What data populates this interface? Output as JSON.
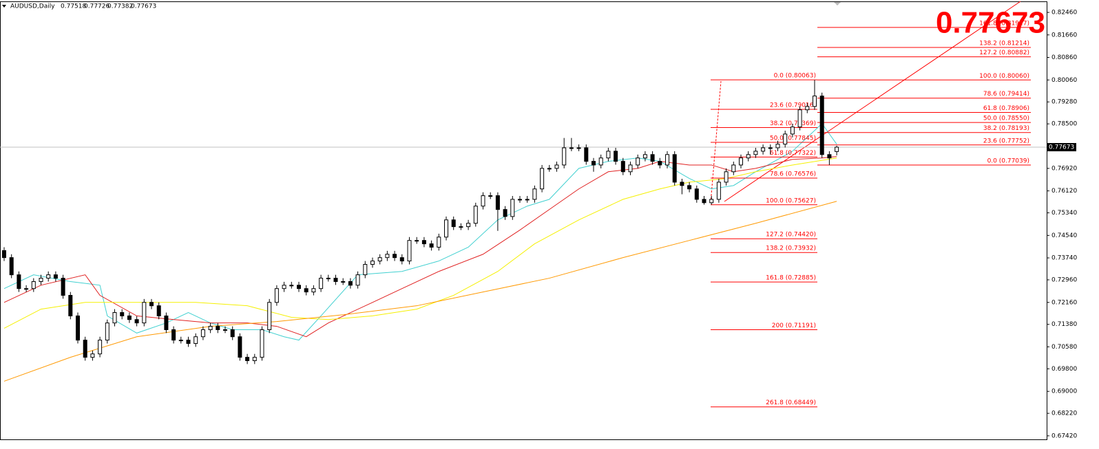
{
  "chart_data": {
    "type": "candlestick",
    "symbol": "AUDUSD,Daily",
    "ylim": [
      0.6727,
      0.829
    ],
    "yticks": [
      {
        "value": 0.8246,
        "label": "0.82460"
      },
      {
        "value": 0.8166,
        "label": "0.81660"
      },
      {
        "value": 0.8086,
        "label": "0.80860"
      },
      {
        "value": 0.8006,
        "label": "0.80060"
      },
      {
        "value": 0.7928,
        "label": "0.79280"
      },
      {
        "value": 0.785,
        "label": "0.78500"
      },
      {
        "value": 0.7692,
        "label": "0.76920"
      },
      {
        "value": 0.7612,
        "label": "0.76120"
      },
      {
        "value": 0.7534,
        "label": "0.75340"
      },
      {
        "value": 0.7454,
        "label": "0.74540"
      },
      {
        "value": 0.7374,
        "label": "0.73740"
      },
      {
        "value": 0.7296,
        "label": "0.72960"
      },
      {
        "value": 0.7216,
        "label": "0.72160"
      },
      {
        "value": 0.7138,
        "label": "0.71380"
      },
      {
        "value": 0.7058,
        "label": "0.70580"
      },
      {
        "value": 0.698,
        "label": "0.69800"
      },
      {
        "value": 0.69,
        "label": "0.69000"
      },
      {
        "value": 0.6822,
        "label": "0.68220"
      },
      {
        "value": 0.6742,
        "label": "0.67420"
      }
    ],
    "open": [
      0.74,
      0.7375,
      0.7314,
      0.7265,
      0.7265,
      0.729,
      0.7302,
      0.7314,
      0.7302,
      0.7241,
      0.7168,
      0.7082,
      0.7021,
      0.7033,
      0.7082,
      0.7143,
      0.718,
      0.7168,
      0.7155,
      0.7143,
      0.7216,
      0.7204,
      0.7168,
      0.7119,
      0.7082,
      0.7082,
      0.707,
      0.7094,
      0.7119,
      0.7131,
      0.7119,
      0.7119,
      0.7094,
      0.7021,
      0.7009,
      0.7021,
      0.7119,
      0.7216,
      0.7265,
      0.7277,
      0.7277,
      0.7265,
      0.7253,
      0.7265,
      0.7302,
      0.7302,
      0.729,
      0.729,
      0.7277,
      0.7314,
      0.7351,
      0.7363,
      0.7375,
      0.7387,
      0.7375,
      0.7363,
      0.7436,
      0.7436,
      0.7424,
      0.7412,
      0.7448,
      0.7509,
      0.7485,
      0.7485,
      0.7497,
      0.7558,
      0.7595,
      0.7595,
      0.7546,
      0.7521,
      0.7582,
      0.7582,
      0.7582,
      0.7619,
      0.7692,
      0.7692,
      0.7704,
      0.7765,
      0.7765,
      0.7765,
      0.7717,
      0.7704,
      0.7729,
      0.7753,
      0.7717,
      0.768,
      0.7704,
      0.7729,
      0.7741,
      0.7717,
      0.7704,
      0.7741,
      0.7643,
      0.7631,
      0.7619,
      0.7582,
      0.757,
      0.7582,
      0.7643,
      0.768,
      0.7704,
      0.7729,
      0.7741,
      0.7753,
      0.7765,
      0.7765,
      0.7778,
      0.7814,
      0.7839,
      0.79,
      0.7912,
      0.7949,
      0.7741,
      0.77518
    ],
    "high": [
      0.7412,
      0.7387,
      0.7326,
      0.7277,
      0.7302,
      0.7314,
      0.7326,
      0.7326,
      0.7314,
      0.7253,
      0.718,
      0.7094,
      0.7045,
      0.7094,
      0.7155,
      0.7192,
      0.7192,
      0.718,
      0.7167,
      0.7228,
      0.7228,
      0.7216,
      0.718,
      0.7131,
      0.7094,
      0.7094,
      0.7106,
      0.7131,
      0.7143,
      0.7143,
      0.7131,
      0.7131,
      0.7106,
      0.7033,
      0.7033,
      0.7131,
      0.7228,
      0.7277,
      0.7289,
      0.7289,
      0.7289,
      0.7277,
      0.7277,
      0.7314,
      0.7314,
      0.7314,
      0.7302,
      0.7302,
      0.7326,
      0.7363,
      0.7375,
      0.7387,
      0.7399,
      0.7399,
      0.7387,
      0.7448,
      0.7448,
      0.7448,
      0.7436,
      0.746,
      0.7521,
      0.7521,
      0.7497,
      0.7509,
      0.757,
      0.7607,
      0.7607,
      0.7607,
      0.7558,
      0.7594,
      0.7594,
      0.7594,
      0.7631,
      0.7704,
      0.7704,
      0.7716,
      0.78,
      0.78,
      0.7777,
      0.7777,
      0.7729,
      0.7741,
      0.7765,
      0.7765,
      0.7729,
      0.7716,
      0.7741,
      0.7753,
      0.7753,
      0.7729,
      0.7753,
      0.7753,
      0.7655,
      0.7643,
      0.7631,
      0.7594,
      0.7594,
      0.7655,
      0.7692,
      0.7716,
      0.7741,
      0.7753,
      0.7765,
      0.7777,
      0.7777,
      0.779,
      0.7826,
      0.7851,
      0.7912,
      0.7924,
      0.8006,
      0.7961,
      0.7753,
      0.77726
    ],
    "low": [
      0.7363,
      0.7302,
      0.7253,
      0.7253,
      0.7253,
      0.7278,
      0.729,
      0.729,
      0.7229,
      0.7156,
      0.707,
      0.7009,
      0.7009,
      0.7021,
      0.707,
      0.7131,
      0.7156,
      0.7143,
      0.7131,
      0.7131,
      0.7192,
      0.7156,
      0.7107,
      0.707,
      0.707,
      0.7058,
      0.7058,
      0.7082,
      0.7107,
      0.7107,
      0.7107,
      0.7082,
      0.7009,
      0.6997,
      0.6997,
      0.7009,
      0.7107,
      0.7204,
      0.7253,
      0.7265,
      0.7253,
      0.7241,
      0.7241,
      0.7253,
      0.729,
      0.7278,
      0.7278,
      0.7265,
      0.7265,
      0.7302,
      0.7339,
      0.7351,
      0.7363,
      0.7363,
      0.7351,
      0.7351,
      0.7424,
      0.7412,
      0.74,
      0.74,
      0.7436,
      0.7473,
      0.7473,
      0.7473,
      0.7485,
      0.7546,
      0.7583,
      0.747,
      0.7509,
      0.7509,
      0.757,
      0.757,
      0.757,
      0.7607,
      0.768,
      0.768,
      0.7692,
      0.7753,
      0.7753,
      0.7705,
      0.768,
      0.7692,
      0.7717,
      0.7705,
      0.7668,
      0.7668,
      0.7692,
      0.7717,
      0.7705,
      0.7692,
      0.7692,
      0.7631,
      0.76,
      0.7607,
      0.757,
      0.7563,
      0.7563,
      0.757,
      0.7631,
      0.7668,
      0.7692,
      0.7717,
      0.7729,
      0.7741,
      0.7741,
      0.7753,
      0.7766,
      0.7802,
      0.7827,
      0.7888,
      0.79,
      0.7729,
      0.7704,
      0.77382
    ],
    "close": [
      0.7375,
      0.7314,
      0.7265,
      0.7265,
      0.729,
      0.7302,
      0.7314,
      0.7302,
      0.7241,
      0.7168,
      0.7082,
      0.7021,
      0.7033,
      0.7082,
      0.7143,
      0.718,
      0.7168,
      0.7155,
      0.7143,
      0.7216,
      0.7204,
      0.7168,
      0.7119,
      0.7082,
      0.7082,
      0.707,
      0.7094,
      0.7119,
      0.7131,
      0.7119,
      0.7119,
      0.7094,
      0.7021,
      0.7009,
      0.7021,
      0.7119,
      0.7216,
      0.7265,
      0.7277,
      0.7277,
      0.7265,
      0.7253,
      0.7265,
      0.7302,
      0.7302,
      0.729,
      0.729,
      0.7277,
      0.7314,
      0.7351,
      0.7363,
      0.7375,
      0.7387,
      0.7375,
      0.7363,
      0.7436,
      0.7436,
      0.7424,
      0.7412,
      0.7448,
      0.7509,
      0.7485,
      0.7485,
      0.7497,
      0.7558,
      0.7595,
      0.7595,
      0.7546,
      0.7521,
      0.7582,
      0.7582,
      0.7582,
      0.7619,
      0.7692,
      0.7692,
      0.7704,
      0.7765,
      0.7765,
      0.7765,
      0.7717,
      0.7704,
      0.7729,
      0.7753,
      0.7717,
      0.768,
      0.7704,
      0.7729,
      0.7741,
      0.7717,
      0.7704,
      0.7741,
      0.7643,
      0.7631,
      0.7619,
      0.7582,
      0.757,
      0.7582,
      0.7643,
      0.768,
      0.7704,
      0.7729,
      0.7741,
      0.7753,
      0.7765,
      0.7765,
      0.7778,
      0.7814,
      0.7839,
      0.79,
      0.7912,
      0.7949,
      0.7741,
      0.7729,
      0.77673
    ],
    "bull_color": "#ffffff",
    "bear_color": "#000000",
    "moving_averages": [
      {
        "color": "#40d0d0",
        "x": [
          0,
          4,
          9,
          13,
          14,
          18,
          22,
          25,
          28,
          31,
          35,
          38,
          40,
          43,
          48,
          54,
          59,
          63,
          67,
          71,
          74,
          78,
          82,
          86,
          89,
          93,
          96,
          99,
          102,
          107,
          111,
          113
        ],
        "values": [
          0.7265,
          0.7314,
          0.729,
          0.7277,
          0.7168,
          0.7107,
          0.7143,
          0.718,
          0.7143,
          0.7119,
          0.7119,
          0.7094,
          0.7082,
          0.7168,
          0.7314,
          0.7326,
          0.7363,
          0.7412,
          0.7509,
          0.7558,
          0.7582,
          0.7692,
          0.7717,
          0.7729,
          0.7717,
          0.7656,
          0.7619,
          0.7631,
          0.768,
          0.7753,
          0.7851,
          0.7778
        ]
      },
      {
        "color": "#e02020",
        "x": [
          0,
          5,
          11,
          13,
          18,
          23,
          28,
          33,
          37,
          41,
          44,
          50,
          54,
          59,
          65,
          70,
          74,
          78,
          82,
          86,
          89,
          93,
          96,
          99,
          102,
          107,
          111,
          113
        ],
        "values": [
          0.7216,
          0.7277,
          0.7314,
          0.7241,
          0.7168,
          0.7155,
          0.7143,
          0.7143,
          0.7131,
          0.7094,
          0.7143,
          0.7216,
          0.7265,
          0.7326,
          0.7387,
          0.7473,
          0.7546,
          0.7619,
          0.768,
          0.7692,
          0.7717,
          0.7704,
          0.7704,
          0.768,
          0.7692,
          0.7724,
          0.7729,
          0.7734
        ]
      },
      {
        "color": "#f5f000",
        "x": [
          0,
          5,
          11,
          18,
          26,
          33,
          39,
          44,
          50,
          56,
          61,
          67,
          72,
          78,
          84,
          89,
          93,
          98,
          102,
          107,
          113
        ],
        "values": [
          0.7124,
          0.7192,
          0.7216,
          0.7216,
          0.7216,
          0.7204,
          0.7163,
          0.7155,
          0.7168,
          0.7192,
          0.7241,
          0.7326,
          0.7424,
          0.7509,
          0.7582,
          0.7619,
          0.7643,
          0.7656,
          0.768,
          0.7704,
          0.7729
        ]
      },
      {
        "color": "#ff9900",
        "x": [
          0,
          9,
          18,
          28,
          37,
          46,
          56,
          65,
          74,
          84,
          93,
          102,
          113
        ],
        "values": [
          0.6936,
          0.7021,
          0.7094,
          0.7131,
          0.7148,
          0.7172,
          0.7204,
          0.7253,
          0.7302,
          0.7375,
          0.7436,
          0.7497,
          0.7575
        ]
      }
    ],
    "fibs": [
      {
        "color": "#ff0000",
        "levels": [
          {
            "value": 0.80063,
            "label": "0.0 (0.80063)"
          },
          {
            "value": 0.79016,
            "label": "23.6 (0.79016)"
          },
          {
            "value": 0.78369,
            "label": "38.2 (0.78369)"
          },
          {
            "value": 0.77845,
            "label": "50.0 (0.77845)"
          },
          {
            "value": 0.77322,
            "label": "61.8 (0.77322)"
          },
          {
            "value": 0.76576,
            "label": "78.6 (0.76576)"
          },
          {
            "value": 0.75627,
            "label": "100.0 (0.75627)"
          },
          {
            "value": 0.7442,
            "label": "127.2 (0.74420)"
          },
          {
            "value": 0.73932,
            "label": "138.2 (0.73932)"
          },
          {
            "value": 0.72885,
            "label": "161.8 (0.72885)"
          },
          {
            "value": 0.71191,
            "label": "200 (0.71191)"
          },
          {
            "value": 0.68449,
            "label": "261.8 (0.68449)"
          }
        ]
      },
      {
        "color": "#ff0000",
        "levels": [
          {
            "value": 0.77039,
            "label": "0.0 (0.77039)"
          },
          {
            "value": 0.77752,
            "label": "23.6 (0.77752)"
          },
          {
            "value": 0.78193,
            "label": "38.2 (0.78193)"
          },
          {
            "value": 0.7855,
            "label": "50.0 (0.78550)"
          },
          {
            "value": 0.78906,
            "label": "61.8 (0.78906)"
          },
          {
            "value": 0.79414,
            "label": "78.6 (0.79414)"
          },
          {
            "value": 0.8006,
            "label": "100.0 (0.80060)"
          },
          {
            "value": 0.80882,
            "label": "127.2 (0.80882)"
          },
          {
            "value": 0.81214,
            "label": "138.2 (0.81214)"
          },
          {
            "value": 0.81927,
            "label": "161.8 (0.81927)"
          }
        ]
      }
    ]
  }
}
